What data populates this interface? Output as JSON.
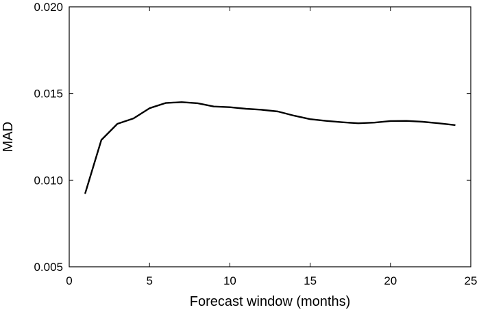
{
  "chart_data": {
    "type": "line",
    "title": "",
    "xlabel": "Forecast window (months)",
    "ylabel": "MAD",
    "xlim": [
      0,
      25
    ],
    "ylim": [
      0.005,
      0.02
    ],
    "xticks": [
      0,
      5,
      10,
      15,
      20,
      25
    ],
    "xtick_labels": [
      "0",
      "5",
      "10",
      "15",
      "20",
      "25"
    ],
    "yticks": [
      0.005,
      0.01,
      0.015,
      0.02
    ],
    "ytick_labels": [
      "0.005",
      "0.010",
      "0.015",
      "0.020"
    ],
    "grid": false,
    "legend": "none",
    "line_color": "#000000",
    "series": [
      {
        "x": [
          1,
          2,
          3,
          4,
          5,
          6,
          7,
          8,
          9,
          10,
          11,
          12,
          13,
          14,
          15,
          16,
          17,
          18,
          19,
          20,
          21,
          22,
          23,
          24
        ],
        "values": [
          0.00925,
          0.01232,
          0.01325,
          0.01356,
          0.01415,
          0.01445,
          0.0145,
          0.01444,
          0.01425,
          0.01421,
          0.01412,
          0.01406,
          0.01396,
          0.01372,
          0.01352,
          0.01342,
          0.01334,
          0.01328,
          0.01332,
          0.01341,
          0.01342,
          0.01337,
          0.01328,
          0.01318
        ]
      }
    ]
  }
}
